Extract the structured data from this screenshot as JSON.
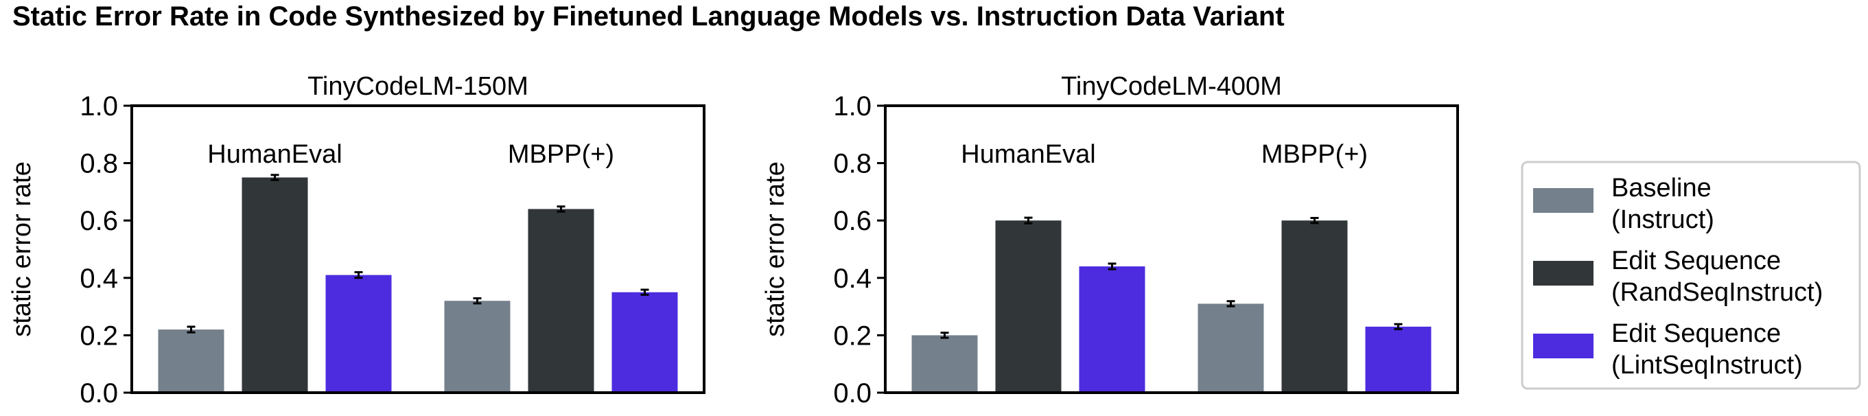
{
  "figure_title": "Static Error Rate in Code Synthesized by Finetuned Language Models vs. Instruction Data Variant",
  "colors": {
    "baseline": "#74808c",
    "randseq": "#313638",
    "lintseq": "#4d2ce0"
  },
  "legend": {
    "placement": "right",
    "entries": [
      {
        "line1": "Baseline",
        "line2": "(Instruct)",
        "color": "#74808c"
      },
      {
        "line1": "Edit Sequence",
        "line2": "(RandSeqInstruct)",
        "color": "#313638"
      },
      {
        "line1": "Edit Sequence",
        "line2": "(LintSeqInstruct)",
        "color": "#4d2ce0"
      }
    ]
  },
  "chart_data": [
    {
      "type": "bar",
      "title": "TinyCodeLM-150M",
      "ylabel": "static error rate",
      "ylim": [
        0,
        1.0
      ],
      "yticks": [
        "0.0",
        "0.2",
        "0.4",
        "0.6",
        "0.8",
        "1.0"
      ],
      "categories": [
        "HumanEval",
        "MBPP(+)"
      ],
      "series": [
        {
          "name": "Baseline (Instruct)",
          "values": [
            0.22,
            0.32
          ],
          "errors": [
            0.005,
            0.004
          ]
        },
        {
          "name": "Edit Sequence (RandSeqInstruct)",
          "values": [
            0.75,
            0.64
          ],
          "errors": [
            0.004,
            0.004
          ]
        },
        {
          "name": "Edit Sequence (LintSeqInstruct)",
          "values": [
            0.41,
            0.35
          ],
          "errors": [
            0.005,
            0.004
          ]
        }
      ]
    },
    {
      "type": "bar",
      "title": "TinyCodeLM-400M",
      "ylabel": "static error rate",
      "ylim": [
        0,
        1.0
      ],
      "yticks": [
        "0.0",
        "0.2",
        "0.4",
        "0.6",
        "0.8",
        "1.0"
      ],
      "categories": [
        "HumanEval",
        "MBPP(+)"
      ],
      "series": [
        {
          "name": "Baseline (Instruct)",
          "values": [
            0.2,
            0.31
          ],
          "errors": [
            0.004,
            0.004
          ]
        },
        {
          "name": "Edit Sequence (RandSeqInstruct)",
          "values": [
            0.6,
            0.6
          ],
          "errors": [
            0.005,
            0.004
          ]
        },
        {
          "name": "Edit Sequence (LintSeqInstruct)",
          "values": [
            0.44,
            0.23
          ],
          "errors": [
            0.005,
            0.004
          ]
        }
      ]
    }
  ]
}
